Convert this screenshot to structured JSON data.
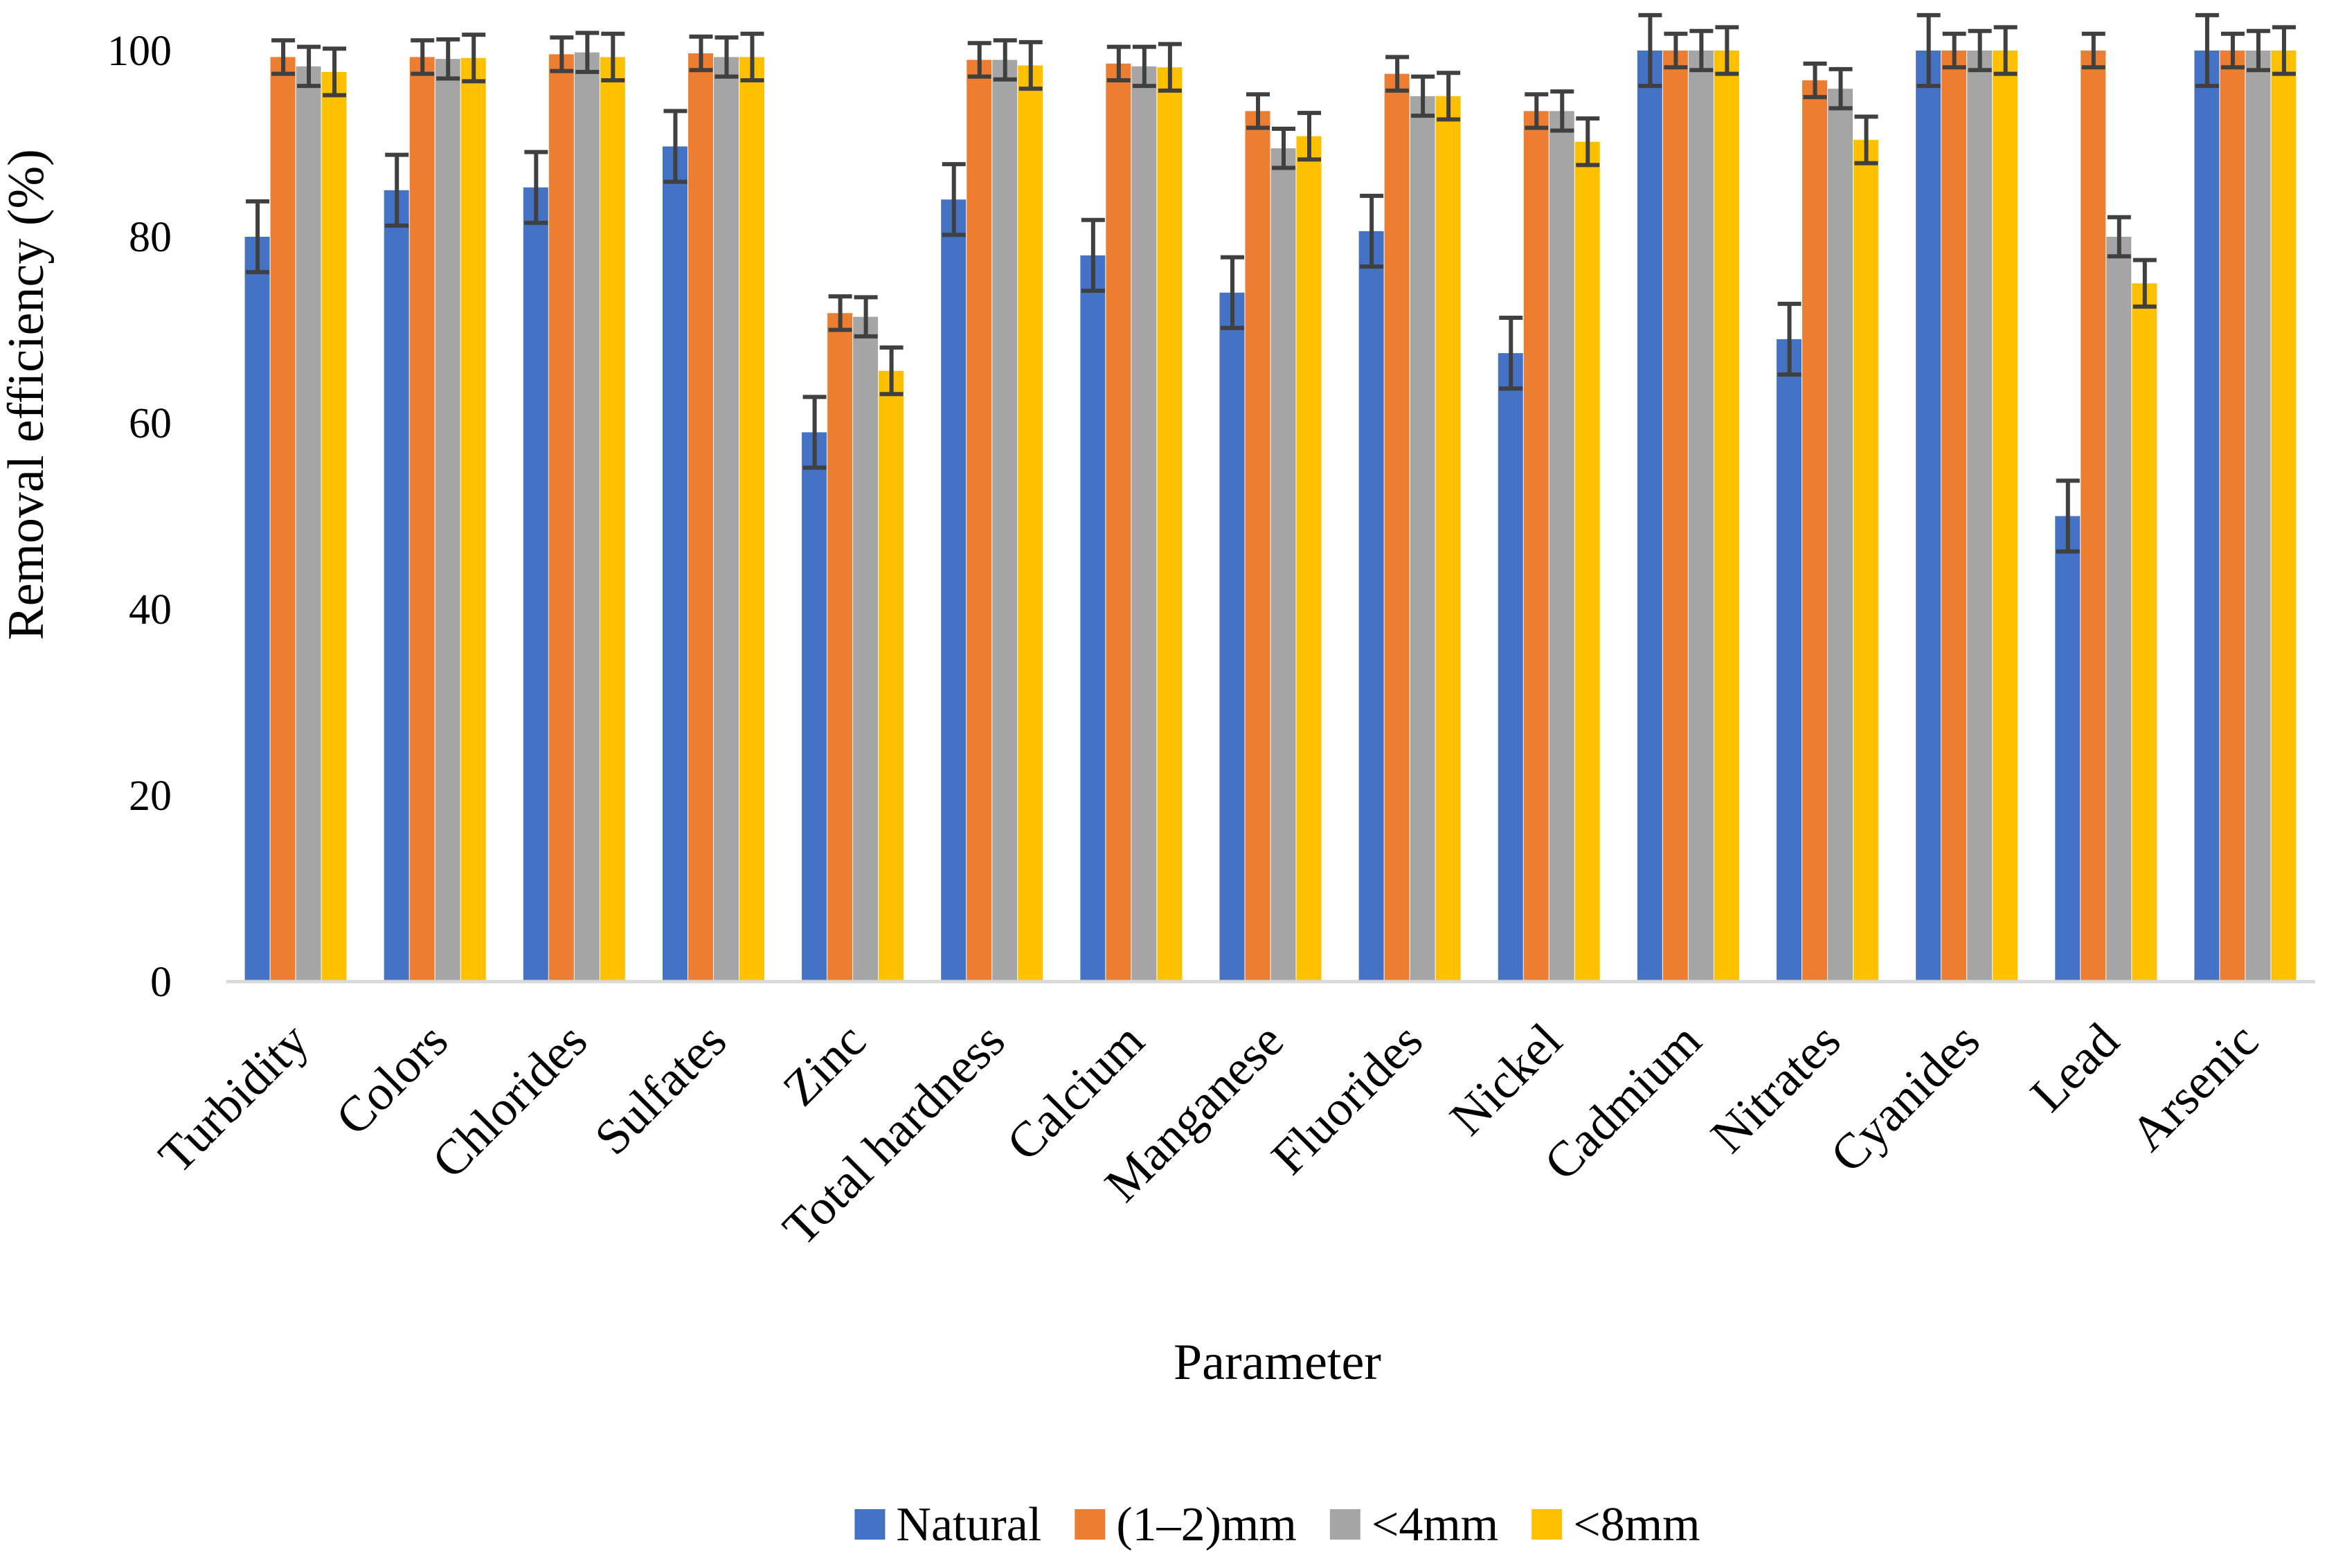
{
  "chart_data": {
    "type": "bar",
    "title": "",
    "xlabel": "Parameter",
    "ylabel": "Removal efficiency (%)",
    "ylim": [
      0,
      100
    ],
    "yticks": [
      0,
      20,
      40,
      60,
      80,
      100
    ],
    "grid": false,
    "legend_position": "bottom",
    "categories": [
      "Turbidity",
      "Colors",
      "Chlorides",
      "Sulfates",
      "Zinc",
      "Total hardness",
      "Calcium",
      "Manganese",
      "Fluorides",
      "Nickel",
      "Cadmium",
      "Nitrates",
      "Cyanides",
      "Lead",
      "Arsenic"
    ],
    "series": [
      {
        "name": "Natural",
        "color": "#4472C4",
        "values": [
          80,
          85,
          85.3,
          89.7,
          59,
          84,
          78,
          74,
          80.6,
          67.5,
          100,
          69,
          100,
          50,
          100
        ],
        "errors": [
          3.8,
          3.8,
          3.8,
          3.8,
          3.8,
          3.8,
          3.8,
          3.8,
          3.8,
          3.8,
          3.8,
          3.8,
          3.8,
          3.8,
          3.8
        ]
      },
      {
        "name": "(1–2)mm",
        "color": "#ED7D31",
        "values": [
          99.3,
          99.3,
          99.6,
          99.7,
          71.8,
          99,
          98.6,
          93.5,
          97.5,
          93.5,
          100,
          96.8,
          100,
          100,
          100
        ],
        "errors": [
          1.8,
          1.8,
          1.8,
          1.8,
          1.8,
          1.8,
          1.8,
          1.8,
          1.8,
          1.8,
          1.8,
          1.8,
          1.8,
          1.8,
          1.8
        ]
      },
      {
        "name": "<4mm",
        "color": "#A5A5A5",
        "values": [
          98.3,
          99.1,
          99.8,
          99.3,
          71.4,
          99,
          98.3,
          89.5,
          95.1,
          93.5,
          100,
          95.9,
          100,
          80,
          100
        ],
        "errors": [
          2.1,
          2.1,
          2.1,
          2.1,
          2.1,
          2.1,
          2.1,
          2.1,
          2.1,
          2.1,
          2.1,
          2.1,
          2.1,
          2.1,
          2.1
        ]
      },
      {
        "name": "<8mm",
        "color": "#FFC000",
        "values": [
          97.7,
          99.2,
          99.3,
          99.3,
          65.6,
          98.4,
          98.2,
          90.8,
          95.1,
          90.2,
          100,
          90.4,
          100,
          75,
          100
        ],
        "errors": [
          2.5,
          2.5,
          2.5,
          2.5,
          2.5,
          2.5,
          2.5,
          2.5,
          2.5,
          2.5,
          2.5,
          2.5,
          2.5,
          2.5,
          2.5
        ]
      }
    ]
  }
}
